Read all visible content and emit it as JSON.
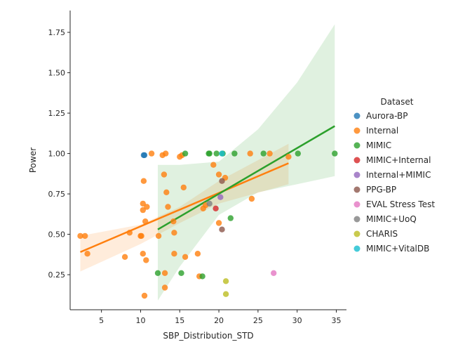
{
  "chart_data": {
    "type": "scatter",
    "title": "",
    "xlabel": "SBP_Distribution_STD",
    "ylabel": "Power",
    "xlim": [
      1.0,
      36.3
    ],
    "ylim": [
      0.033,
      1.885
    ],
    "xticks": [
      5,
      10,
      15,
      20,
      25,
      30,
      35
    ],
    "yticks": [
      0.25,
      0.5,
      0.75,
      1.0,
      1.25,
      1.5,
      1.75
    ],
    "xtick_labels": [
      "5",
      "10",
      "15",
      "20",
      "25",
      "30",
      "35"
    ],
    "ytick_labels": [
      "0.25",
      "0.50",
      "0.75",
      "1.00",
      "1.25",
      "1.50",
      "1.75"
    ],
    "grid": false,
    "legend": {
      "title": "Dataset",
      "placement": "right",
      "entries": [
        "Aurora-BP",
        "Internal",
        "MIMIC",
        "MIMIC+Internal",
        "Internal+MIMIC",
        "PPG-BP",
        "EVAL Stress Test",
        "MIMIC+UoQ",
        "CHARIS",
        "MIMIC+VitalDB"
      ]
    },
    "series": [
      {
        "name": "Aurora-BP",
        "color": "#1f77b4",
        "points": [
          [
            10.4,
            0.99
          ],
          [
            10.5,
            0.99
          ]
        ]
      },
      {
        "name": "Internal",
        "color": "#ff7f0e",
        "points": [
          [
            2.3,
            0.49
          ],
          [
            2.9,
            0.49
          ],
          [
            3.2,
            0.38
          ],
          [
            8.0,
            0.36
          ],
          [
            8.6,
            0.51
          ],
          [
            10.0,
            0.49
          ],
          [
            10.1,
            0.49
          ],
          [
            10.3,
            0.38
          ],
          [
            10.3,
            0.69
          ],
          [
            10.3,
            0.65
          ],
          [
            10.4,
            0.83
          ],
          [
            10.5,
            0.12
          ],
          [
            10.6,
            0.58
          ],
          [
            10.7,
            0.34
          ],
          [
            10.8,
            0.67
          ],
          [
            11.4,
            1.0
          ],
          [
            12.3,
            0.49
          ],
          [
            12.8,
            0.99
          ],
          [
            13.0,
            0.87
          ],
          [
            13.1,
            0.26
          ],
          [
            13.1,
            0.17
          ],
          [
            13.2,
            1.0
          ],
          [
            13.3,
            0.76
          ],
          [
            13.5,
            0.67
          ],
          [
            14.2,
            0.58
          ],
          [
            14.3,
            0.51
          ],
          [
            14.3,
            0.38
          ],
          [
            15.0,
            0.98
          ],
          [
            15.3,
            0.99
          ],
          [
            15.5,
            0.79
          ],
          [
            15.7,
            0.36
          ],
          [
            17.3,
            0.38
          ],
          [
            17.5,
            0.24
          ],
          [
            18.0,
            0.66
          ],
          [
            18.3,
            0.68
          ],
          [
            19.3,
            0.93
          ],
          [
            20.0,
            0.57
          ],
          [
            20.0,
            0.87
          ],
          [
            20.8,
            0.85
          ],
          [
            24.0,
            1.0
          ],
          [
            24.2,
            0.72
          ],
          [
            26.5,
            1.0
          ],
          [
            28.9,
            0.98
          ]
        ]
      },
      {
        "name": "MIMIC",
        "color": "#2ca02c",
        "points": [
          [
            12.2,
            0.26
          ],
          [
            15.2,
            0.26
          ],
          [
            15.7,
            1.0
          ],
          [
            17.9,
            0.24
          ],
          [
            18.7,
            1.0
          ],
          [
            18.8,
            1.0
          ],
          [
            19.7,
            1.0
          ],
          [
            20.5,
            1.0
          ],
          [
            21.5,
            0.6
          ],
          [
            22.0,
            1.0
          ],
          [
            25.7,
            1.0
          ],
          [
            30.1,
            1.0
          ],
          [
            34.8,
            1.0
          ]
        ]
      },
      {
        "name": "MIMIC+Internal",
        "color": "#d62728",
        "points": [
          [
            19.6,
            0.66
          ]
        ]
      },
      {
        "name": "Internal+MIMIC",
        "color": "#9467bd",
        "points": [
          [
            20.2,
            0.73
          ]
        ]
      },
      {
        "name": "PPG-BP",
        "color": "#8c564b",
        "points": [
          [
            20.4,
            0.53
          ],
          [
            20.4,
            0.83
          ]
        ]
      },
      {
        "name": "EVAL Stress Test",
        "color": "#e377c2",
        "points": [
          [
            27.0,
            0.26
          ]
        ]
      },
      {
        "name": "MIMIC+UoQ",
        "color": "#7f7f7f",
        "points": [
          [
            18.8,
            0.69
          ]
        ]
      },
      {
        "name": "CHARIS",
        "color": "#bcbd22",
        "points": [
          [
            20.9,
            0.13
          ],
          [
            20.9,
            0.21
          ]
        ]
      },
      {
        "name": "MIMIC+VitalDB",
        "color": "#17becf",
        "points": [
          [
            20.4,
            1.0
          ]
        ]
      }
    ],
    "regressions": [
      {
        "series": "Internal",
        "color": "#ff7f0e",
        "line": [
          [
            2.3,
            0.39
          ],
          [
            28.9,
            0.94
          ]
        ],
        "ci_upper": [
          [
            2.3,
            0.49
          ],
          [
            10.0,
            0.56
          ],
          [
            15.0,
            0.67
          ],
          [
            20.0,
            0.83
          ],
          [
            28.9,
            1.06
          ]
        ],
        "ci_lower": [
          [
            2.3,
            0.27
          ],
          [
            10.0,
            0.44
          ],
          [
            15.0,
            0.57
          ],
          [
            20.0,
            0.69
          ],
          [
            28.9,
            0.81
          ]
        ]
      },
      {
        "series": "MIMIC",
        "color": "#2ca02c",
        "line": [
          [
            12.2,
            0.53
          ],
          [
            34.8,
            1.17
          ]
        ],
        "ci_upper": [
          [
            12.2,
            0.93
          ],
          [
            15.0,
            0.93
          ],
          [
            20.0,
            0.95
          ],
          [
            25.0,
            1.15
          ],
          [
            30.0,
            1.44
          ],
          [
            34.8,
            1.8
          ]
        ],
        "ci_lower": [
          [
            12.2,
            0.09
          ],
          [
            15.0,
            0.3
          ],
          [
            20.0,
            0.62
          ],
          [
            25.0,
            0.76
          ],
          [
            30.0,
            0.81
          ],
          [
            34.8,
            0.86
          ]
        ]
      }
    ]
  }
}
